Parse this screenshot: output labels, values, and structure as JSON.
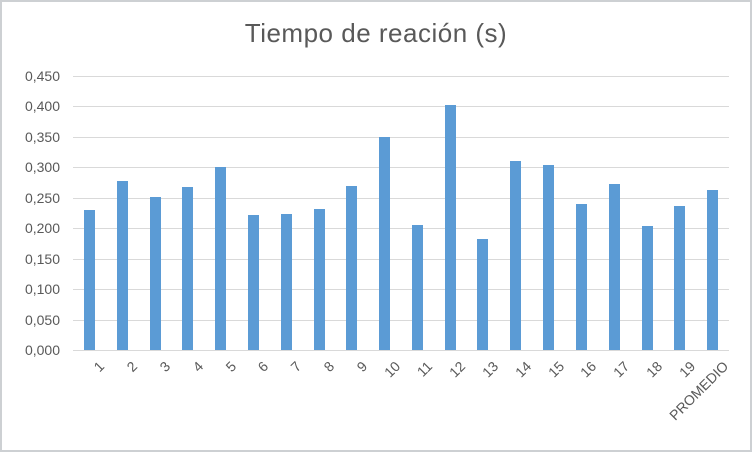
{
  "chart_data": {
    "type": "bar",
    "title": "Tiempo de reación (s)",
    "categories": [
      "1",
      "2",
      "3",
      "4",
      "5",
      "6",
      "7",
      "8",
      "9",
      "10",
      "11",
      "12",
      "13",
      "14",
      "15",
      "16",
      "17",
      "18",
      "19",
      "PROMEDIO"
    ],
    "values": [
      0.23,
      0.278,
      0.252,
      0.267,
      0.3,
      0.221,
      0.223,
      0.232,
      0.27,
      0.35,
      0.205,
      0.402,
      0.183,
      0.311,
      0.304,
      0.239,
      0.272,
      0.204,
      0.237,
      0.262
    ],
    "xlabel": "",
    "ylabel": "",
    "ylim": [
      0,
      0.45
    ],
    "ytick_step": 0.05,
    "ytick_labels": [
      "0,000",
      "0,050",
      "0,100",
      "0,150",
      "0,200",
      "0,250",
      "0,300",
      "0,350",
      "0,400",
      "0,450"
    ],
    "decimal_separator": ",",
    "grid": true,
    "legend": "none",
    "x_labels_rotation_deg": 45,
    "colors": {
      "bar_fill": "#5B9BD5",
      "gridline": "#D9D9D9",
      "text": "#595959",
      "frame_border": "#cdd0d3",
      "background": "#ffffff"
    }
  }
}
